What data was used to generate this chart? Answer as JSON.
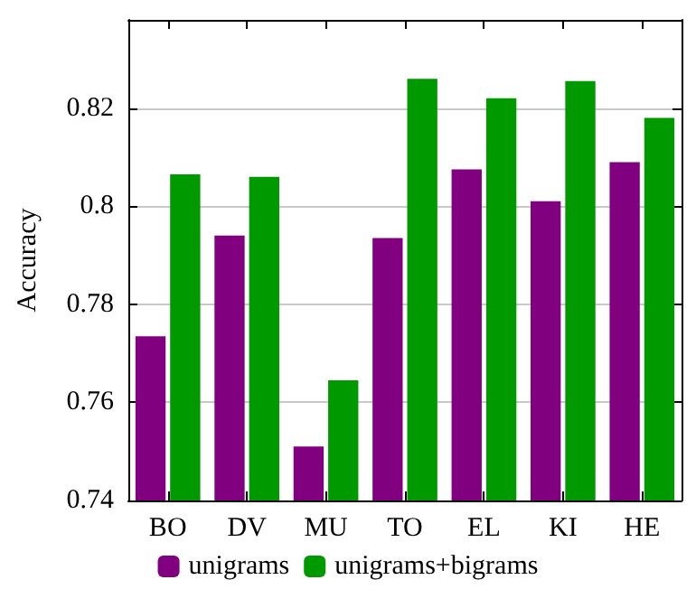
{
  "chart_data": {
    "type": "bar",
    "ylabel": "Accuracy",
    "categories": [
      "BO",
      "DV",
      "MU",
      "TO",
      "EL",
      "KI",
      "HE"
    ],
    "series": [
      {
        "name": "unigrams",
        "color": "#800080",
        "values": [
          0.7735,
          0.794,
          0.751,
          0.7935,
          0.8075,
          0.801,
          0.809
        ]
      },
      {
        "name": "unigrams+bigrams",
        "color": "#009900",
        "values": [
          0.8065,
          0.806,
          0.7645,
          0.826,
          0.822,
          0.8255,
          0.818
        ]
      }
    ],
    "ylim": [
      0.74,
      0.838
    ],
    "yticks": [
      0.74,
      0.76,
      0.78,
      0.8,
      0.82
    ],
    "grid": "y",
    "legend": "bottom"
  }
}
